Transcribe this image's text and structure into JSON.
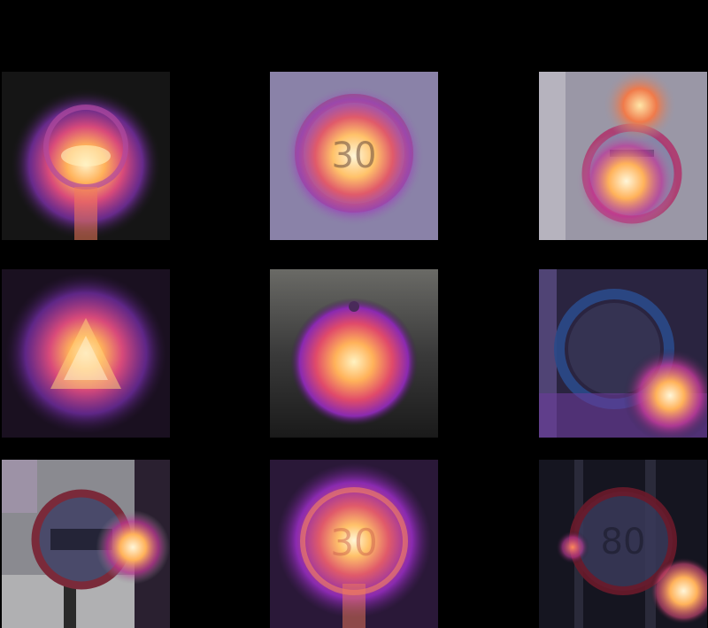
{
  "figure": {
    "background_color": "#000000",
    "heat_palette": [
      "#2a0a3a",
      "#7b2fa8",
      "#c43a9a",
      "#f06a4a",
      "#ffd27a",
      "#fff6d8"
    ],
    "rows": [
      {
        "tiles": [
          {
            "background_color": "#151515",
            "sign": "circle-prohibition",
            "hotspot": "center-lower"
          },
          {
            "background_color": "#8a82a8",
            "sign": "speed-limit-circle",
            "hotspot": "center"
          },
          {
            "background_color": "#9a97a6",
            "sign": "circle-prohibition",
            "hotspot": "top-and-lower"
          }
        ]
      },
      {
        "tiles": [
          {
            "background_color": "#1a1020",
            "sign": "warning-triangle",
            "hotspot": "center"
          },
          {
            "background_color": "#5a5a58",
            "sign": "speed-limit-circle",
            "hotspot": "center"
          },
          {
            "background_color": "#2a2440",
            "sign": "circle-blue",
            "hotspot": "lower-right"
          }
        ]
      },
      {
        "tiles": [
          {
            "background_color": "#8a8a90",
            "sign": "speed-limit-circle",
            "hotspot": "right"
          },
          {
            "background_color": "#2a1838",
            "sign": "speed-limit-circle",
            "hotspot": "center"
          },
          {
            "background_color": "#151520",
            "sign": "speed-limit-circle",
            "hotspot": "left-and-lower-right"
          }
        ]
      }
    ]
  }
}
